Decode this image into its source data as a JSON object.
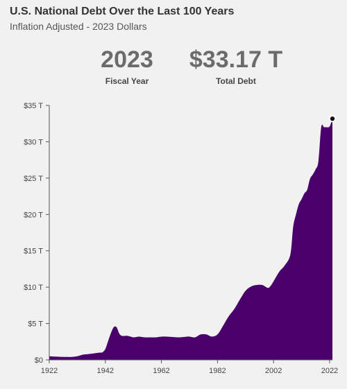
{
  "header": {
    "title": "U.S. National Debt Over the Last 100 Years",
    "subtitle": "Inflation Adjusted - 2023 Dollars"
  },
  "stats": {
    "year_value": "2023",
    "year_label": "Fiscal Year",
    "debt_value": "$33.17 T",
    "debt_label": "Total Debt"
  },
  "colors": {
    "area": "#4a006a",
    "axis": "#555555",
    "marker": "#111111"
  },
  "chart_data": {
    "type": "area",
    "title": "U.S. National Debt Over the Last 100 Years",
    "subtitle": "Inflation Adjusted - 2023 Dollars",
    "xlabel": "",
    "ylabel": "",
    "xlim": [
      1922,
      2023
    ],
    "ylim": [
      0,
      35
    ],
    "x_ticks": [
      1922,
      1942,
      1962,
      1982,
      2002,
      2022
    ],
    "y_ticks": [
      {
        "value": 0,
        "label": "$0"
      },
      {
        "value": 5,
        "label": "$5 T"
      },
      {
        "value": 10,
        "label": "$10 T"
      },
      {
        "value": 15,
        "label": "$15 T"
      },
      {
        "value": 20,
        "label": "$20 T"
      },
      {
        "value": 25,
        "label": "$25 T"
      },
      {
        "value": 30,
        "label": "$30 T"
      },
      {
        "value": 35,
        "label": "$35 T"
      }
    ],
    "grid": false,
    "highlight": {
      "x": 2023,
      "y": 33.17
    },
    "x": [
      1922,
      1924,
      1926,
      1928,
      1930,
      1932,
      1934,
      1936,
      1938,
      1940,
      1941,
      1942,
      1943,
      1944,
      1945,
      1946,
      1947,
      1948,
      1950,
      1952,
      1954,
      1956,
      1958,
      1960,
      1962,
      1964,
      1966,
      1968,
      1970,
      1972,
      1974,
      1976,
      1978,
      1980,
      1982,
      1984,
      1986,
      1988,
      1990,
      1992,
      1994,
      1996,
      1998,
      2000,
      2001,
      2002,
      2004,
      2006,
      2008,
      2009,
      2010,
      2011,
      2012,
      2013,
      2014,
      2015,
      2016,
      2017,
      2018,
      2019,
      2020,
      2021,
      2022,
      2023
    ],
    "y": [
      0.5,
      0.45,
      0.42,
      0.4,
      0.4,
      0.5,
      0.72,
      0.8,
      0.9,
      1.0,
      1.05,
      1.5,
      2.6,
      3.7,
      4.5,
      4.5,
      3.6,
      3.3,
      3.3,
      3.1,
      3.2,
      3.1,
      3.1,
      3.1,
      3.2,
      3.2,
      3.15,
      3.1,
      3.15,
      3.2,
      3.1,
      3.5,
      3.5,
      3.2,
      3.5,
      4.7,
      6.0,
      7.0,
      8.3,
      9.5,
      10.1,
      10.3,
      10.3,
      9.9,
      10.2,
      10.8,
      12.1,
      13.0,
      14.5,
      18.3,
      20.0,
      21.4,
      22.1,
      22.9,
      23.4,
      24.9,
      25.5,
      26.2,
      27.3,
      32.0,
      32.0,
      32.0,
      32.1,
      33.17
    ]
  }
}
